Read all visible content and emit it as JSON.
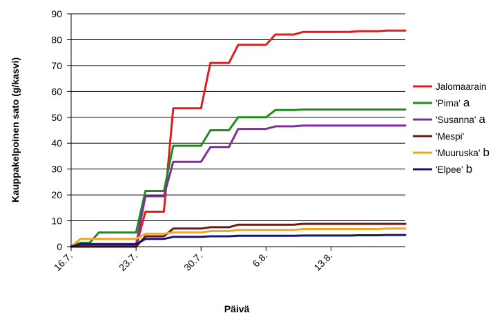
{
  "chart_data": {
    "type": "line",
    "title": "",
    "xlabel": "Päivä",
    "ylabel": "Kauppakelpoinen sato (g/kasvi)",
    "ylim": [
      0,
      90
    ],
    "yticks": [
      0,
      10,
      20,
      30,
      40,
      50,
      60,
      70,
      80,
      90
    ],
    "xlim": [
      "16.7.",
      "21.8."
    ],
    "xticks": [
      "16.7.",
      "23.7.",
      "30.7.",
      "6.8.",
      "13.8."
    ],
    "grid": "horizontal",
    "legend_position": "right",
    "x": [
      "16.7.",
      "17.7.",
      "18.7.",
      "19.7.",
      "20.7.",
      "21.7.",
      "22.7.",
      "23.7.",
      "24.7.",
      "25.7.",
      "26.7.",
      "27.7.",
      "28.7.",
      "29.7.",
      "30.7.",
      "31.7.",
      "1.8.",
      "2.8.",
      "3.8.",
      "4.8.",
      "5.8.",
      "6.8.",
      "7.8.",
      "8.8.",
      "9.8.",
      "10.8.",
      "11.8.",
      "12.8.",
      "13.8.",
      "14.8.",
      "15.8.",
      "16.8.",
      "17.8.",
      "18.8.",
      "19.8.",
      "20.8.",
      "21.8."
    ],
    "series": [
      {
        "name": "Jalomaarain",
        "suffix": "",
        "color": "#dd1e1e",
        "values": [
          0,
          0,
          0,
          0,
          0,
          0,
          0,
          0,
          13.5,
          13.5,
          13.5,
          53.5,
          53.5,
          53.5,
          53.5,
          71,
          71,
          71,
          78,
          78,
          78,
          78,
          82,
          82,
          82,
          83,
          83,
          83,
          83,
          83,
          83,
          83.3,
          83.3,
          83.3,
          83.5,
          83.5,
          83.5
        ]
      },
      {
        "name": "'Pima'",
        "suffix": "a",
        "color": "#1e8c1e",
        "values": [
          0,
          1.5,
          1.5,
          5.5,
          5.5,
          5.5,
          5.5,
          5.5,
          21.5,
          21.5,
          21.5,
          39,
          39,
          39,
          39,
          45,
          45,
          45,
          50,
          50,
          50,
          50,
          52.8,
          52.8,
          52.8,
          53,
          53,
          53,
          53,
          53,
          53,
          53,
          53,
          53,
          53,
          53,
          53
        ]
      },
      {
        "name": "'Susanna'",
        "suffix": "a",
        "color": "#7d2fa0",
        "values": [
          0,
          0.8,
          0.8,
          0.8,
          0.8,
          0.8,
          0.8,
          0.8,
          19.5,
          19.5,
          19.5,
          32.8,
          32.8,
          32.8,
          32.8,
          38.5,
          38.5,
          38.5,
          45.5,
          45.5,
          45.5,
          45.5,
          46.5,
          46.5,
          46.5,
          46.8,
          46.8,
          46.8,
          46.8,
          46.8,
          46.8,
          46.8,
          46.8,
          46.8,
          46.8,
          46.8,
          46.8
        ]
      },
      {
        "name": "'Mespi'",
        "suffix": "",
        "color": "#6b1a12",
        "values": [
          0,
          0,
          0,
          0,
          0,
          0,
          0,
          0,
          4,
          4,
          4,
          7,
          7,
          7,
          7,
          7.5,
          7.5,
          7.5,
          8.5,
          8.5,
          8.5,
          8.5,
          8.5,
          8.5,
          8.5,
          8.8,
          8.8,
          8.8,
          8.8,
          8.8,
          8.8,
          8.8,
          8.8,
          8.8,
          8.8,
          8.8,
          8.8
        ]
      },
      {
        "name": "'Muuruska'",
        "suffix": "b",
        "color": "#f2a623",
        "values": [
          0,
          3,
          3,
          3,
          3,
          3,
          3,
          3,
          5,
          5,
          5,
          5.5,
          5.5,
          5.5,
          5.5,
          6,
          6,
          6,
          6.5,
          6.5,
          6.5,
          6.5,
          6.5,
          6.5,
          6.5,
          6.8,
          6.8,
          6.8,
          6.8,
          6.8,
          6.8,
          6.8,
          6.8,
          6.8,
          7,
          7,
          7
        ]
      },
      {
        "name": "'Elpee'",
        "suffix": "b",
        "color": "#141478",
        "values": [
          0,
          1,
          1,
          1,
          1,
          1,
          1,
          1,
          3,
          3,
          3,
          3.8,
          3.8,
          3.8,
          3.8,
          4,
          4,
          4,
          4.2,
          4.2,
          4.2,
          4.2,
          4.2,
          4.2,
          4.2,
          4.3,
          4.3,
          4.3,
          4.3,
          4.3,
          4.3,
          4.4,
          4.4,
          4.4,
          4.5,
          4.5,
          4.5
        ]
      }
    ]
  }
}
